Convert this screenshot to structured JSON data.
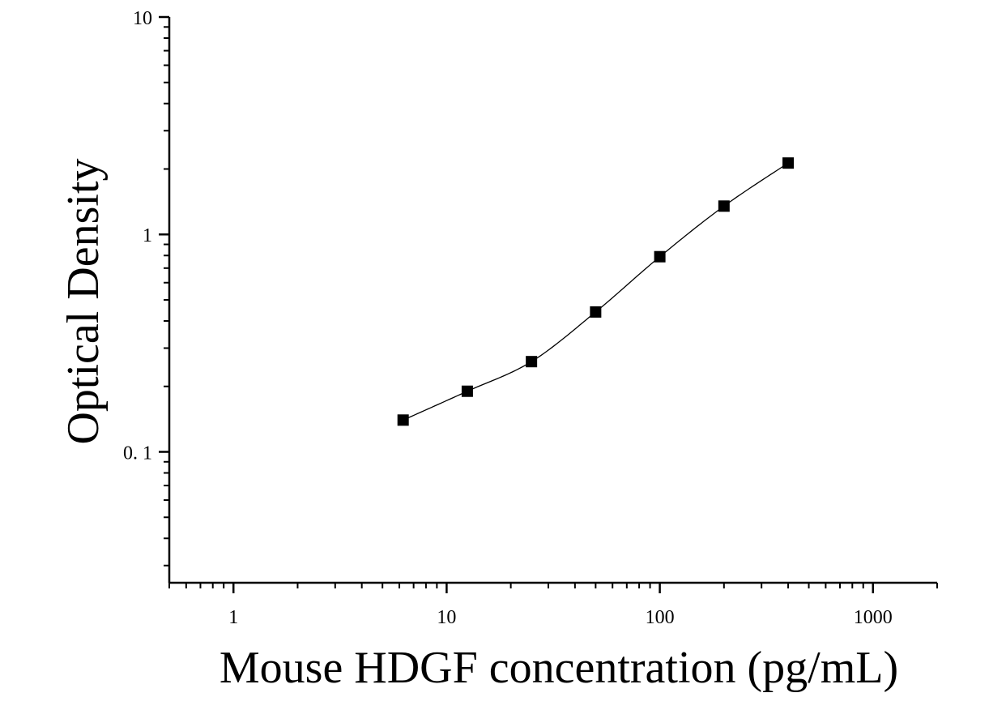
{
  "chart_data": {
    "type": "scatter",
    "title": "",
    "xlabel": "Mouse HDGF concentration (pg/mL)",
    "ylabel": "Optical Density",
    "x_scale": "log",
    "y_scale": "log",
    "xlim": [
      0.5,
      2000
    ],
    "ylim": [
      0.025,
      10
    ],
    "x_ticks": [
      1,
      10,
      100,
      1000
    ],
    "x_tick_labels": [
      "1",
      "10",
      "100",
      "1000"
    ],
    "y_ticks": [
      0.1,
      1,
      10
    ],
    "y_tick_labels": [
      "0. 1",
      "1",
      "10"
    ],
    "grid": false,
    "legend": "none",
    "series": [
      {
        "marker": "square",
        "color": "#000000",
        "fit": "smooth-curve",
        "x": [
          6.25,
          12.5,
          25,
          50,
          100,
          200,
          400
        ],
        "y": [
          0.14,
          0.19,
          0.26,
          0.44,
          0.79,
          1.35,
          2.13
        ]
      }
    ]
  }
}
